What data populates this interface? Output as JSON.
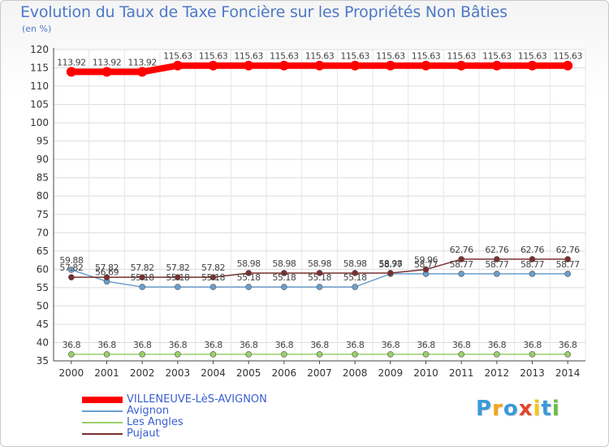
{
  "header": {
    "title": "Evolution du Taux de Taxe Foncière sur les Propriétés Non Bâties",
    "unit": "(en %)"
  },
  "logo": {
    "text": "Proxiti",
    "colors": [
      "#3a9ad9",
      "#f5a31a",
      "#3a9ad9",
      "#e2452b",
      "#f5c518",
      "#3a9ad9",
      "#6bbd45"
    ]
  },
  "chart_data": {
    "type": "line",
    "title": "Evolution du Taux de Taxe Foncière sur les Propriétés Non Bâties",
    "ylabel": "(en %)",
    "xlabel": "",
    "ylim": [
      35,
      120
    ],
    "y_ticks": [
      35,
      40,
      45,
      50,
      55,
      60,
      65,
      70,
      75,
      80,
      85,
      90,
      95,
      100,
      105,
      110,
      115,
      120
    ],
    "grid": true,
    "legend_position": "bottom-left",
    "categories": [
      "2000",
      "2001",
      "2002",
      "2003",
      "2004",
      "2005",
      "2006",
      "2007",
      "2008",
      "2009",
      "2010",
      "2011",
      "2012",
      "2013",
      "2014"
    ],
    "series": [
      {
        "name": "VILLENEUVE-LèS-AVIGNON",
        "color": "#ff0000",
        "values": [
          113.92,
          113.92,
          113.92,
          115.63,
          115.63,
          115.63,
          115.63,
          115.63,
          115.63,
          115.63,
          115.63,
          115.63,
          115.63,
          115.63,
          115.63
        ],
        "labels": [
          "113.92",
          "113.92",
          "113.92",
          "115.63",
          "115.63",
          "115.63",
          "115.63",
          "115.63",
          "115.63",
          "115.63",
          "115.63",
          "115.63",
          "115.63",
          "115.63",
          "115.63"
        ]
      },
      {
        "name": "Avignon",
        "color": "#6a9fcc",
        "values": [
          59.88,
          56.69,
          55.18,
          55.18,
          55.18,
          55.18,
          55.18,
          55.18,
          55.18,
          58.77,
          58.77,
          58.77,
          58.77,
          58.77,
          58.77
        ],
        "labels": [
          "59.88",
          "56.69",
          "55.18",
          "55.18",
          "55.18",
          "55.18",
          "55.18",
          "55.18",
          "55.18",
          "58.77",
          "58.77",
          "58.77",
          "58.77",
          "58.77",
          "58.77"
        ]
      },
      {
        "name": "Les Angles",
        "color": "#99d06a",
        "values": [
          36.8,
          36.8,
          36.8,
          36.8,
          36.8,
          36.8,
          36.8,
          36.8,
          36.8,
          36.8,
          36.8,
          36.8,
          36.8,
          36.8,
          36.8
        ],
        "labels": [
          "36.8",
          "36.8",
          "36.8",
          "36.8",
          "36.8",
          "36.8",
          "36.8",
          "36.8",
          "36.8",
          "36.8",
          "36.8",
          "36.8",
          "36.8",
          "36.8",
          "36.8"
        ]
      },
      {
        "name": "Pujaut",
        "color": "#7a2e2e",
        "values": [
          57.82,
          57.82,
          57.82,
          57.82,
          57.82,
          58.98,
          58.98,
          58.98,
          58.98,
          58.98,
          59.96,
          62.76,
          62.76,
          62.76,
          62.76
        ],
        "labels": [
          "57.82",
          "57.82",
          "57.82",
          "57.82",
          "57.82",
          "58.98",
          "58.98",
          "58.98",
          "58.98",
          "58.98",
          "59.96",
          "62.76",
          "62.76",
          "62.76",
          "62.76"
        ]
      }
    ]
  }
}
